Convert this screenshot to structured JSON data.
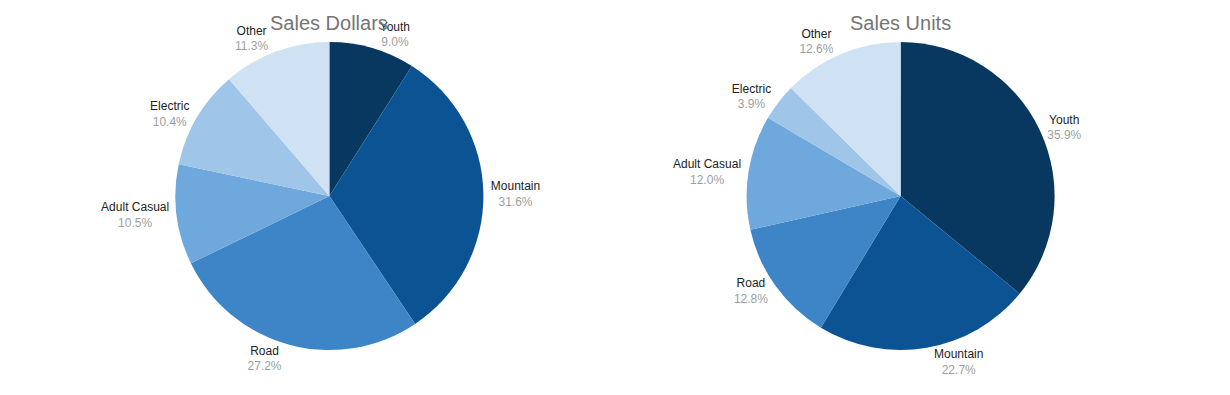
{
  "chart_data": [
    {
      "type": "pie",
      "title": "Sales Dollars",
      "categories": [
        "Youth",
        "Mountain",
        "Road",
        "Adult Casual",
        "Electric",
        "Other"
      ],
      "values": [
        9.0,
        31.6,
        27.2,
        10.5,
        10.4,
        11.3
      ],
      "value_labels": [
        "9.0%",
        "31.6%",
        "27.2%",
        "10.5%",
        "10.4%",
        "11.3%"
      ],
      "colors": [
        "#08375f",
        "#0c5394",
        "#3d85c6",
        "#6fa8dc",
        "#9fc5e8",
        "#cfe2f3"
      ],
      "data_labels": true
    },
    {
      "type": "pie",
      "title": "Sales Units",
      "categories": [
        "Youth",
        "Mountain",
        "Road",
        "Adult Casual",
        "Electric",
        "Other"
      ],
      "values": [
        35.9,
        22.7,
        12.8,
        12.0,
        3.9,
        12.6
      ],
      "value_labels": [
        "35.9%",
        "22.7%",
        "12.8%",
        "12.0%",
        "3.9%",
        "12.6%"
      ],
      "colors": [
        "#08375f",
        "#0c5394",
        "#3d85c6",
        "#6fa8dc",
        "#9fc5e8",
        "#cfe2f3"
      ],
      "data_labels": true
    }
  ]
}
